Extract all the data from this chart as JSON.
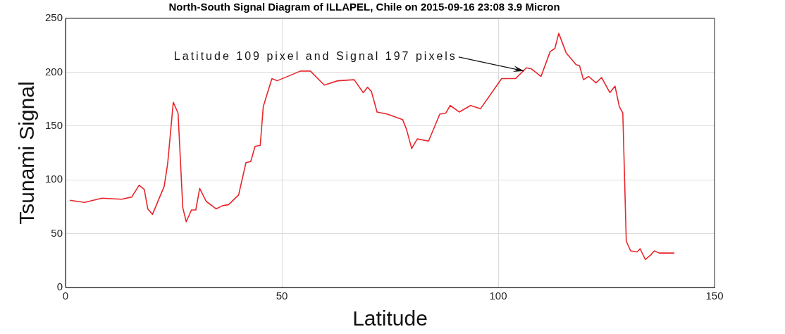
{
  "chart_data": {
    "type": "line",
    "title": "North-South Signal Diagram of ILLAPEL, Chile on 2015-09-16 23:08 3.9 Micron",
    "xlabel": "Latitude",
    "ylabel": "Tsunami Signal",
    "series": [
      {
        "color": "#e8262b",
        "x": [
          1,
          4.4,
          8.4,
          13,
          15.3,
          17,
          18.2,
          19,
          20.1,
          22.8,
          23.6,
          24.9,
          26,
          27.1,
          27.9,
          29.1,
          30.1,
          31,
          32.5,
          34.8,
          36.3,
          37.7,
          40,
          41.7,
          42.8,
          43.8,
          45,
          45.7,
          47.7,
          48.9,
          54.3,
          56.6,
          59.8,
          62.9,
          66.7,
          68.8,
          69.8,
          70.7,
          72,
          74.4,
          77.9,
          78.8,
          80,
          81.3,
          83.9,
          86.5,
          87.9,
          88.9,
          91,
          93.6,
          95.9,
          100.8,
          104,
          106.5,
          107.7,
          109.9,
          112,
          113.1,
          114,
          115.7,
          118,
          118.8,
          119.7,
          120.9,
          122.6,
          123.9,
          125.8,
          127,
          128,
          128.8,
          129.6,
          130.6,
          132.1,
          132.8,
          134,
          135.2,
          136.1,
          137.2,
          140.7
        ],
        "values": [
          81,
          79,
          83,
          82,
          84,
          95,
          91,
          73,
          68,
          94,
          115,
          172,
          162,
          74,
          61,
          72,
          72,
          92,
          80,
          73,
          76,
          77,
          86,
          116,
          117,
          131,
          132,
          168,
          194,
          192,
          201,
          201,
          188,
          192,
          193,
          181,
          186,
          182,
          163,
          161,
          156,
          147,
          129,
          138,
          136,
          161,
          162,
          169,
          163,
          169,
          166,
          194,
          194,
          204,
          203,
          196,
          219,
          222,
          236,
          218,
          207,
          206,
          193,
          196,
          190,
          195,
          181,
          187,
          168,
          162,
          43,
          34,
          33,
          36,
          26,
          30,
          34,
          32,
          32
        ]
      }
    ],
    "xlim": [
      0,
      150
    ],
    "xticks": [
      0,
      50,
      100,
      150
    ],
    "ylim": [
      0,
      250
    ],
    "yticks": [
      0,
      50,
      100,
      150,
      200,
      250
    ],
    "grid": true,
    "legend": false,
    "marker": "none",
    "line_style": "solid",
    "annotations": [
      {
        "text": "Latitude 109 pixel and Signal 197 pixels",
        "x": 106,
        "y": 201
      }
    ]
  }
}
